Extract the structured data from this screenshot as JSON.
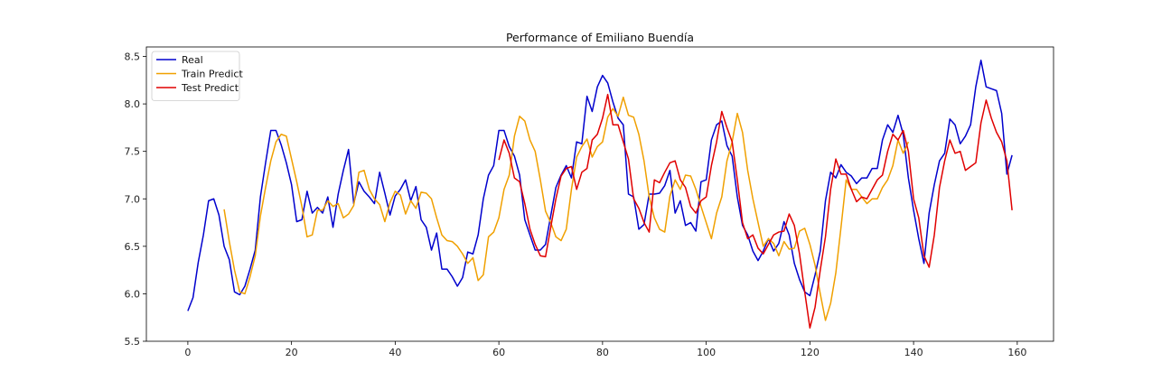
{
  "chart_data": {
    "type": "line",
    "title": "Performance of Emiliano Buendía",
    "xlabel": "",
    "ylabel": "",
    "xlim": [
      -8,
      167
    ],
    "ylim": [
      5.5,
      8.6
    ],
    "xticks": [
      0,
      20,
      40,
      60,
      80,
      100,
      120,
      140,
      160
    ],
    "yticks": [
      5.5,
      6.0,
      6.5,
      7.0,
      7.5,
      8.0,
      8.5
    ],
    "grid": false,
    "legend": "top-left",
    "series": [
      {
        "name": "Real",
        "color": "#0000cd",
        "x_start": 0,
        "values": [
          5.82,
          5.96,
          6.33,
          6.62,
          6.98,
          7.0,
          6.83,
          6.5,
          6.36,
          6.02,
          5.99,
          6.08,
          6.26,
          6.46,
          7.02,
          7.38,
          7.72,
          7.72,
          7.57,
          7.38,
          7.15,
          6.76,
          6.78,
          7.08,
          6.85,
          6.91,
          6.85,
          7.02,
          6.7,
          7.05,
          7.3,
          7.52,
          6.95,
          7.18,
          7.08,
          7.02,
          6.95,
          7.28,
          7.06,
          6.83,
          7.03,
          7.1,
          7.2,
          6.98,
          7.13,
          6.78,
          6.7,
          6.46,
          6.64,
          6.26,
          6.26,
          6.18,
          6.08,
          6.17,
          6.44,
          6.42,
          6.62,
          7.0,
          7.25,
          7.35,
          7.72,
          7.72,
          7.55,
          7.45,
          7.25,
          6.78,
          6.62,
          6.46,
          6.46,
          6.52,
          6.82,
          7.12,
          7.25,
          7.35,
          7.22,
          7.6,
          7.58,
          8.08,
          7.92,
          8.18,
          8.3,
          8.22,
          8.02,
          7.85,
          7.78,
          7.05,
          7.02,
          6.68,
          6.73,
          7.05,
          7.05,
          7.06,
          7.14,
          7.3,
          6.85,
          6.98,
          6.72,
          6.75,
          6.66,
          7.18,
          7.2,
          7.62,
          7.78,
          7.82,
          7.56,
          7.45,
          7.02,
          6.72,
          6.62,
          6.45,
          6.35,
          6.45,
          6.58,
          6.45,
          6.53,
          6.76,
          6.62,
          6.32,
          6.15,
          6.02,
          5.98,
          6.2,
          6.45,
          6.98,
          7.28,
          7.22,
          7.36,
          7.28,
          7.24,
          7.16,
          7.22,
          7.22,
          7.32,
          7.32,
          7.62,
          7.78,
          7.7,
          7.88,
          7.68,
          7.22,
          6.88,
          6.58,
          6.32,
          6.85,
          7.15,
          7.4,
          7.48,
          7.84,
          7.78,
          7.58,
          7.66,
          7.78,
          8.18,
          8.46,
          8.18,
          8.16,
          8.14,
          7.9,
          7.26,
          7.46
        ]
      },
      {
        "name": "Train Predict",
        "color": "#f0a000",
        "x_start": 7,
        "values": [
          6.89,
          6.55,
          6.25,
          6.02,
          6.0,
          6.18,
          6.4,
          6.82,
          7.12,
          7.4,
          7.6,
          7.68,
          7.66,
          7.42,
          7.18,
          6.92,
          6.6,
          6.62,
          6.88,
          6.88,
          6.98,
          6.92,
          6.95,
          6.8,
          6.84,
          6.93,
          7.28,
          7.3,
          7.1,
          7.0,
          6.94,
          6.76,
          6.96,
          7.08,
          7.04,
          6.84,
          6.98,
          6.9,
          7.07,
          7.06,
          7.0,
          6.8,
          6.62,
          6.56,
          6.55,
          6.5,
          6.42,
          6.32,
          6.38,
          6.14,
          6.2,
          6.6,
          6.65,
          6.8,
          7.1,
          7.25,
          7.66,
          7.87,
          7.82,
          7.62,
          7.5,
          7.2,
          6.87,
          6.75,
          6.6,
          6.56,
          6.68,
          7.1,
          7.44,
          7.55,
          7.63,
          7.44,
          7.55,
          7.6,
          7.86,
          7.95,
          7.87,
          8.07,
          7.88,
          7.86,
          7.68,
          7.4,
          7.02,
          6.8,
          6.68,
          6.65,
          7.03,
          7.2,
          7.1,
          7.25,
          7.24,
          7.1,
          6.92,
          6.75,
          6.58,
          6.85,
          7.02,
          7.4,
          7.6,
          7.9,
          7.7,
          7.3,
          7.0,
          6.75,
          6.5,
          6.58,
          6.53,
          6.4,
          6.55,
          6.47,
          6.48,
          6.66,
          6.69,
          6.52,
          6.3,
          6.0,
          5.72,
          5.9,
          6.22,
          6.7,
          7.2,
          7.1,
          7.1,
          7.02,
          6.95,
          7.0,
          7.0,
          7.12,
          7.2,
          7.35,
          7.62,
          7.48,
          7.6
        ]
      },
      {
        "name": "Test Predict",
        "color": "#e00000",
        "x_start": 60,
        "values": [
          7.41,
          7.62,
          7.48,
          7.22,
          7.18,
          6.95,
          6.68,
          6.52,
          6.4,
          6.39,
          6.7,
          7.0,
          7.24,
          7.32,
          7.34,
          7.1,
          7.28,
          7.32,
          7.62,
          7.68,
          7.85,
          8.1,
          7.78,
          7.78,
          7.6,
          7.42,
          7.0,
          6.9,
          6.75,
          6.65,
          7.2,
          7.17,
          7.28,
          7.38,
          7.4,
          7.2,
          7.12,
          6.92,
          6.85,
          6.98,
          7.02,
          7.35,
          7.6,
          7.92,
          7.75,
          7.6,
          7.2,
          6.75,
          6.58,
          6.62,
          6.48,
          6.42,
          6.52,
          6.62,
          6.65,
          6.66,
          6.84,
          6.72,
          6.42,
          6.02,
          5.64,
          5.86,
          6.25,
          6.6,
          7.1,
          7.42,
          7.26,
          7.26,
          7.1,
          6.97,
          7.02,
          7.0,
          7.1,
          7.2,
          7.25,
          7.5,
          7.68,
          7.62,
          7.72,
          7.5,
          7.0,
          6.8,
          6.4,
          6.28,
          6.62,
          7.12,
          7.4,
          7.62,
          7.48,
          7.5,
          7.3,
          7.34,
          7.38,
          7.8,
          8.04,
          7.85,
          7.7,
          7.6,
          7.4,
          6.88
        ]
      }
    ]
  }
}
